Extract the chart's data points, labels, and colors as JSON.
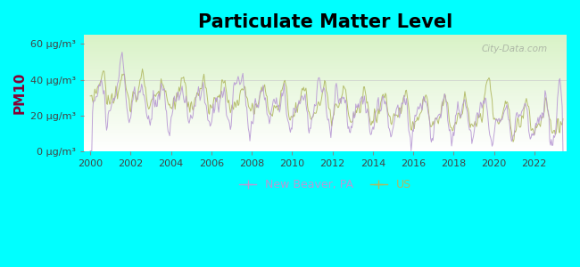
{
  "title": "Particulate Matter Level",
  "ylabel": "PM10",
  "background_color": "#00FFFF",
  "new_beaver_color": "#b899d4",
  "us_color": "#b0b860",
  "new_beaver_label": "New Beaver, PA",
  "us_label": "US",
  "ylim": [
    0,
    65
  ],
  "yticks": [
    0,
    20,
    40,
    60
  ],
  "ytick_labels": [
    "0 μg/m³",
    "20 μg/m³",
    "40 μg/m³",
    "60 μg/m³"
  ],
  "xlim": [
    1999.7,
    2023.6
  ],
  "xticks": [
    2000,
    2002,
    2004,
    2006,
    2008,
    2010,
    2012,
    2014,
    2016,
    2018,
    2020,
    2022
  ],
  "title_fontsize": 15,
  "ylabel_fontsize": 11,
  "tick_fontsize": 8,
  "legend_fontsize": 9,
  "watermark_text": "City-Data.com",
  "seed": 42
}
